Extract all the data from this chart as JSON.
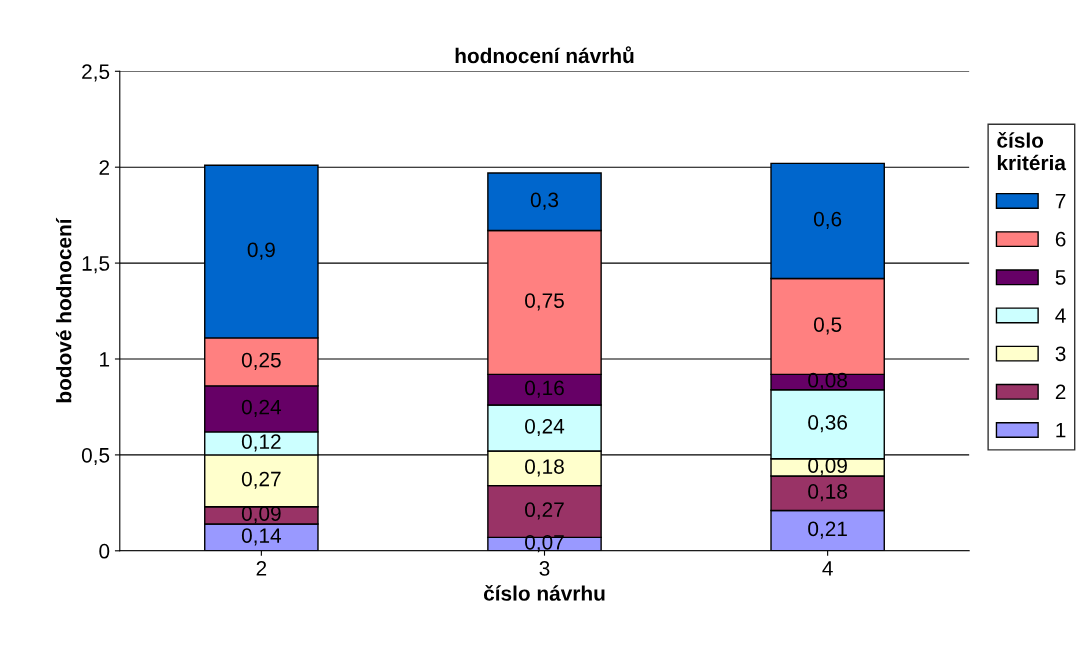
{
  "chart_data": {
    "type": "bar",
    "title": "hodnocení návrhů",
    "xlabel": "číslo návrhu",
    "ylabel": "bodové hodnocení",
    "legend_title": "číslo\nkritéria",
    "categories": [
      "2",
      "3",
      "4"
    ],
    "stacked": true,
    "ylim": [
      0,
      2.5
    ],
    "yticks": [
      0,
      {
        "value": 0.5,
        "label": "0,5"
      },
      1,
      {
        "value": 1.5,
        "label": "1,5"
      },
      2,
      {
        "value": 2.5,
        "label": "2,5"
      }
    ],
    "grid": "y",
    "legend": "right",
    "series": [
      {
        "name": "1",
        "color": "#9999ff",
        "values": [
          0.14,
          0.07,
          0.21
        ],
        "value_labels": [
          "0,14",
          "0,07",
          "0,21"
        ]
      },
      {
        "name": "2",
        "color": "#993366",
        "values": [
          0.09,
          0.27,
          0.18
        ],
        "value_labels": [
          "0,09",
          "0,27",
          "0,18"
        ]
      },
      {
        "name": "3",
        "color": "#ffffcc",
        "values": [
          0.27,
          0.18,
          0.09
        ],
        "value_labels": [
          "0,27",
          "0,18",
          "0,09"
        ]
      },
      {
        "name": "4",
        "color": "#ccffff",
        "values": [
          0.12,
          0.24,
          0.36
        ],
        "value_labels": [
          "0,12",
          "0,24",
          "0,36"
        ]
      },
      {
        "name": "5",
        "color": "#660066",
        "values": [
          0.24,
          0.16,
          0.08
        ],
        "value_labels": [
          "0,24",
          "0,16",
          "0,08"
        ]
      },
      {
        "name": "6",
        "color": "#ff8080",
        "values": [
          0.25,
          0.75,
          0.5
        ],
        "value_labels": [
          "0,25",
          "0,75",
          "0,5"
        ]
      },
      {
        "name": "7",
        "color": "#0066cc",
        "values": [
          0.9,
          0.3,
          0.6
        ],
        "value_labels": [
          "0,9",
          "0,3",
          "0,6"
        ]
      }
    ]
  }
}
